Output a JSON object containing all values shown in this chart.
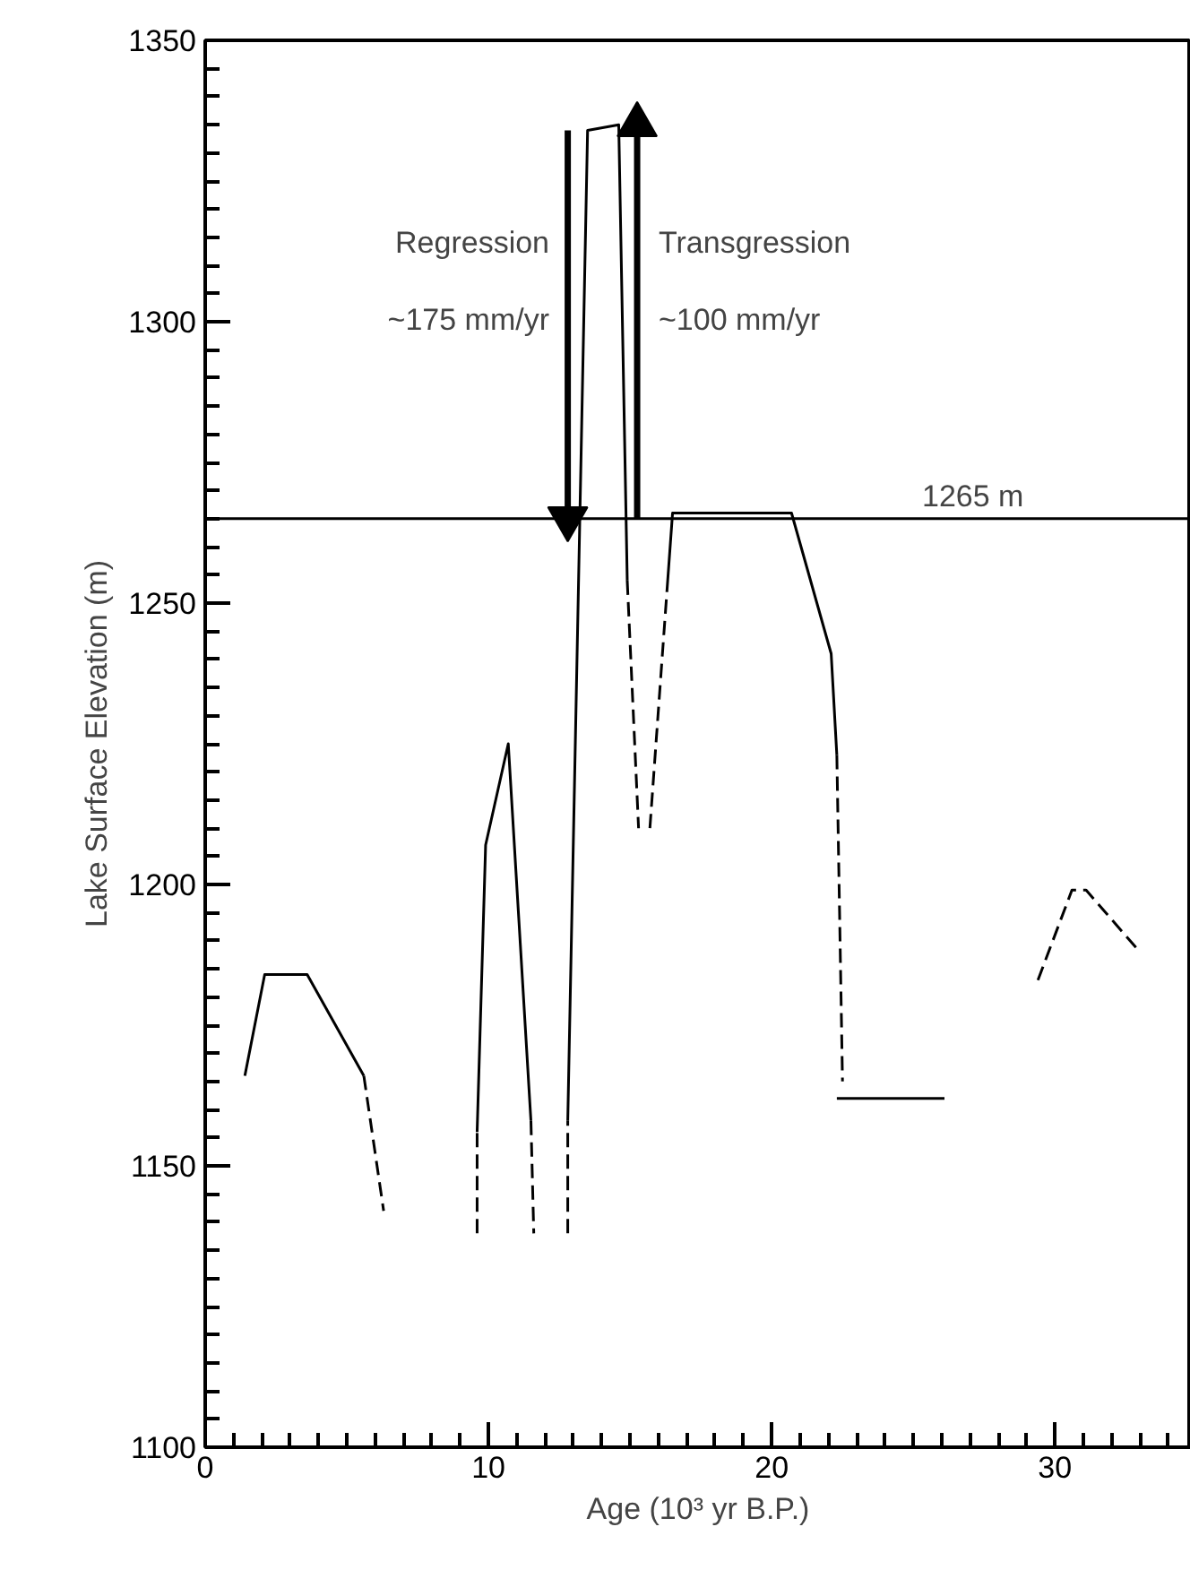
{
  "chart_data": {
    "type": "line",
    "xlabel": "Age (10³ yr B.P.)",
    "ylabel": "Lake Surface Elevation (m)",
    "xlim": [
      0,
      34.8
    ],
    "ylim": [
      1100,
      1350
    ],
    "xticks": [
      0,
      10,
      20,
      30
    ],
    "yticks": [
      1100,
      1150,
      1200,
      1250,
      1300,
      1350
    ],
    "grid": false,
    "series": [
      {
        "color": "#000000",
        "line_style": "solid",
        "x": [
          1.4,
          2.1,
          3.6,
          5.6
        ],
        "values": [
          1166,
          1184,
          1184,
          1166
        ]
      },
      {
        "color": "#000000",
        "line_style": "dashed",
        "x": [
          5.6,
          6.3
        ],
        "values": [
          1166,
          1142
        ]
      },
      {
        "color": "#000000",
        "line_style": "dashed",
        "x": [
          9.6,
          9.6
        ],
        "values": [
          1138,
          1156
        ]
      },
      {
        "color": "#000000",
        "line_style": "solid",
        "x": [
          9.6,
          9.9,
          10.7,
          11.5
        ],
        "values": [
          1156,
          1207,
          1225,
          1158
        ]
      },
      {
        "color": "#000000",
        "line_style": "dashed",
        "x": [
          11.5,
          11.6
        ],
        "values": [
          1158,
          1138
        ]
      },
      {
        "color": "#000000",
        "line_style": "dashed",
        "x": [
          12.8,
          12.8
        ],
        "values": [
          1138,
          1158
        ]
      },
      {
        "color": "#000000",
        "line_style": "solid",
        "x": [
          12.8,
          13.5,
          14.6,
          14.9
        ],
        "values": [
          1158,
          1334,
          1335,
          1254
        ]
      },
      {
        "color": "#000000",
        "line_style": "dashed",
        "x": [
          14.9,
          15.3
        ],
        "values": [
          1254,
          1210
        ]
      },
      {
        "color": "#000000",
        "line_style": "dashed",
        "x": [
          15.7,
          16.3
        ],
        "values": [
          1210,
          1252
        ]
      },
      {
        "color": "#000000",
        "line_style": "solid",
        "x": [
          16.3,
          16.5,
          20.7,
          22.1,
          22.3
        ],
        "values": [
          1252,
          1266,
          1266,
          1241,
          1223
        ]
      },
      {
        "color": "#000000",
        "line_style": "dashed",
        "x": [
          22.3,
          22.5
        ],
        "values": [
          1223,
          1165
        ]
      },
      {
        "color": "#000000",
        "line_style": "solid",
        "x": [
          22.3,
          26.1
        ],
        "values": [
          1162,
          1162
        ]
      },
      {
        "color": "#000000",
        "line_style": "dashed",
        "x": [
          29.4,
          30.6,
          31.1,
          33.0
        ],
        "values": [
          1183,
          1199,
          1199,
          1188
        ]
      },
      {
        "color": "#000000",
        "line_style": "solid",
        "marker": "triangle",
        "x": [
          12.8,
          12.8
        ],
        "values": [
          1334,
          1265
        ]
      },
      {
        "color": "#000000",
        "line_style": "solid",
        "marker": "triangle",
        "x": [
          15.25,
          15.25
        ],
        "values": [
          1265,
          1335
        ]
      }
    ],
    "ref_lines": [
      {
        "axis": "y",
        "value": 1265,
        "label": "1265 m",
        "color": "#000000",
        "line_style": "solid"
      }
    ],
    "annotations": [
      "Regression",
      "~175 mm/yr",
      "Transgression",
      "~100 mm/yr"
    ]
  }
}
